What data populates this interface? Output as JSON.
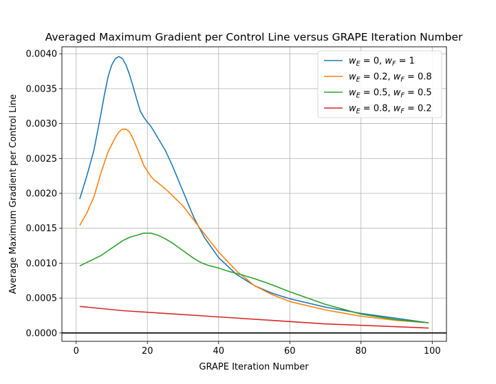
{
  "chart_data": {
    "type": "line",
    "title": "Averaged Maximum Gradient per Control Line versus GRAPE Iteration Number",
    "xlabel": "GRAPE Iteration Number",
    "ylabel": "Average Maximum Gradient per Control Line",
    "xlim": [
      -4,
      104
    ],
    "ylim": [
      -0.00012,
      0.0041
    ],
    "xticks": [
      0,
      20,
      40,
      60,
      80,
      100
    ],
    "xtick_labels": [
      "0",
      "20",
      "40",
      "60",
      "80",
      "100"
    ],
    "yticks": [
      0,
      0.0005,
      0.001,
      0.0015,
      0.002,
      0.0025,
      0.003,
      0.0035,
      0.004
    ],
    "ytick_labels": [
      "0.0000",
      "0.0005",
      "0.0010",
      "0.0015",
      "0.0020",
      "0.0025",
      "0.0030",
      "0.0035",
      "0.0040"
    ],
    "grid": true,
    "legend_position": "top-right",
    "hline_y": 0,
    "series": [
      {
        "name": "wE = 0, wF = 1",
        "legend": {
          "w1": "w",
          "s1": "E",
          "v1": " = 0, ",
          "w2": "w",
          "s2": "F",
          "v2": " = 1"
        },
        "color": "#1f77b4",
        "x": [
          1,
          3,
          5,
          7,
          8,
          9,
          10,
          11,
          12,
          13,
          14,
          15,
          16,
          17,
          18,
          19,
          20,
          21,
          23,
          25,
          27,
          30,
          33,
          36,
          40,
          45,
          50,
          55,
          60,
          70,
          80,
          90,
          99
        ],
        "y": [
          0.00192,
          0.00225,
          0.00262,
          0.00315,
          0.00343,
          0.00368,
          0.00384,
          0.00393,
          0.00396,
          0.00393,
          0.00384,
          0.0037,
          0.00353,
          0.00335,
          0.00318,
          0.00309,
          0.00302,
          0.00296,
          0.00279,
          0.00262,
          0.0024,
          0.00203,
          0.00166,
          0.00137,
          0.00108,
          0.00084,
          0.00068,
          0.00057,
          0.00049,
          0.00037,
          0.00028,
          0.00021,
          0.000145
        ]
      },
      {
        "name": "wE = 0.2, wF = 0.8",
        "legend": {
          "w1": "w",
          "s1": "E",
          "v1": " = 0.2, ",
          "w2": "w",
          "s2": "F",
          "v2": " = 0.8"
        },
        "color": "#ff7f0e",
        "x": [
          1,
          3,
          5,
          7,
          9,
          11,
          12,
          13,
          14,
          15,
          16,
          17,
          18,
          19,
          20,
          21,
          22,
          24,
          26,
          28,
          30,
          33,
          36,
          40,
          45,
          50,
          55,
          60,
          70,
          80,
          90,
          99
        ],
        "y": [
          0.00154,
          0.00172,
          0.00195,
          0.0023,
          0.0026,
          0.0028,
          0.00288,
          0.00292,
          0.00292,
          0.00288,
          0.00278,
          0.00266,
          0.00253,
          0.0024,
          0.00232,
          0.00224,
          0.00219,
          0.00211,
          0.00202,
          0.00192,
          0.00182,
          0.00162,
          0.00142,
          0.00116,
          0.00089,
          0.00068,
          0.00055,
          0.00045,
          0.00033,
          0.00024,
          0.00018,
          0.000145
        ]
      },
      {
        "name": "wE = 0.5, wF = 0.5",
        "legend": {
          "w1": "w",
          "s1": "E",
          "v1": " = 0.5, ",
          "w2": "w",
          "s2": "F",
          "v2": " = 0.5"
        },
        "color": "#2ca02c",
        "x": [
          1,
          3,
          5,
          7,
          9,
          11,
          13,
          15,
          17,
          19,
          21,
          23,
          25,
          27,
          30,
          33,
          35,
          37,
          40,
          43,
          46,
          50,
          55,
          60,
          70,
          80,
          90,
          99
        ],
        "y": [
          0.00096,
          0.00101,
          0.00106,
          0.00111,
          0.00118,
          0.00125,
          0.00132,
          0.00137,
          0.0014,
          0.00143,
          0.00143,
          0.0014,
          0.00135,
          0.00129,
          0.00118,
          0.00107,
          0.00101,
          0.00097,
          0.00093,
          0.00088,
          0.00084,
          0.00078,
          0.00069,
          0.00059,
          0.00041,
          0.00027,
          0.00019,
          0.000145
        ]
      },
      {
        "name": "wE = 0.8, wF = 0.2",
        "legend": {
          "w1": "w",
          "s1": "E",
          "v1": " = 0.8, ",
          "w2": "w",
          "s2": "F",
          "v2": " = 0.2"
        },
        "color": "#d62728",
        "x": [
          1,
          13,
          25,
          40,
          55,
          70,
          85,
          99
        ],
        "y": [
          0.00038,
          0.00032,
          0.00028,
          0.00023,
          0.00018,
          0.00013,
          0.0001,
          7e-05
        ]
      }
    ]
  }
}
